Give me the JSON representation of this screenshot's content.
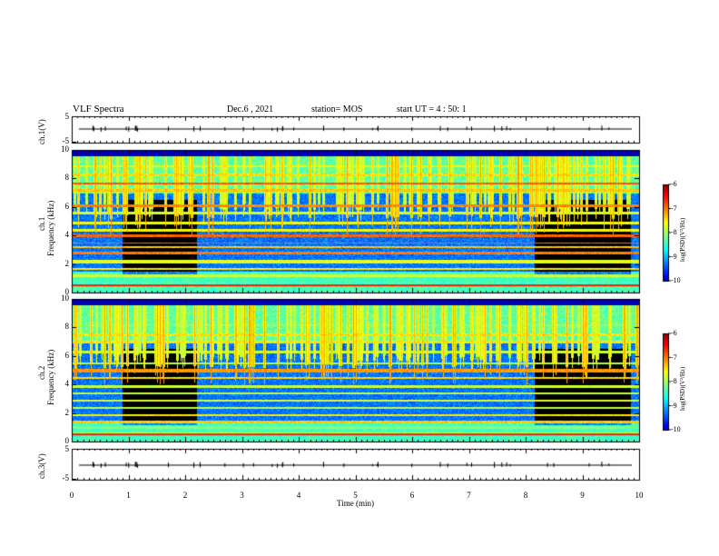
{
  "header": {
    "title": "VLF Spectra",
    "date": "Dec.6 , 2021",
    "station": "station= MOS",
    "start": "start UT = 4 : 50: 1"
  },
  "chart_data": [
    {
      "type": "line",
      "id": "ch1-waveform",
      "ylabel": "ch.1(V)",
      "ylim": [
        -5,
        5
      ],
      "yticks": [
        "5",
        "-5"
      ],
      "xlim": [
        0,
        10
      ],
      "values_note_none": ""
    },
    {
      "type": "heatmap",
      "id": "ch1-spectrogram",
      "ylabel_line1": "ch.1",
      "ylabel_line2": "Frequency (kHz)",
      "ylim": [
        0,
        10
      ],
      "yticks": [
        "0",
        "2",
        "4",
        "6",
        "8",
        "10"
      ],
      "xlim": [
        0,
        10
      ],
      "colorbar": {
        "label": "log(PSD)(V²/Hz)",
        "ticks": [
          "-6",
          "-7",
          "-8",
          "-9",
          "-10"
        ],
        "range": [
          -10,
          -6
        ]
      },
      "quiet_segments_min": [
        [
          0.88,
          2.2
        ],
        [
          8.15,
          9.85
        ]
      ],
      "lines_khz": [
        0.5,
        1.2,
        1.7,
        2.2,
        2.8,
        3.2,
        3.5,
        4.0,
        4.4,
        4.9,
        5.6,
        6.1,
        7.2,
        7.7,
        8.3,
        8.9
      ]
    },
    {
      "type": "heatmap",
      "id": "ch2-spectrogram",
      "ylabel_line1": "ch.2",
      "ylabel_line2": "Frequency (kHz)",
      "ylim": [
        0,
        10
      ],
      "yticks": [
        "0",
        "2",
        "4",
        "6",
        "8",
        "10"
      ],
      "xlim": [
        0,
        10
      ],
      "colorbar": {
        "label": "log(PSD)(V²/Hz)",
        "ticks": [
          "-6",
          "-7",
          "-8",
          "-9",
          "-10"
        ],
        "range": [
          -10,
          -6
        ]
      },
      "quiet_segments_min": [
        [
          0.88,
          2.2
        ],
        [
          8.15,
          9.85
        ]
      ],
      "lines_khz": [
        0.6,
        1.0,
        1.4,
        1.9,
        2.4,
        2.9,
        3.4,
        3.9,
        4.5,
        5.0,
        5.5,
        6.3,
        7.0,
        7.5,
        8.2
      ]
    },
    {
      "type": "line",
      "id": "ch3-waveform",
      "ylabel": "ch.3(V)",
      "ylim": [
        -5,
        5
      ],
      "yticks": [
        "5",
        "-5"
      ],
      "xlim": [
        0,
        10
      ],
      "xlabel": "Time (min)",
      "xticks": [
        "0",
        "1",
        "2",
        "3",
        "4",
        "5",
        "6",
        "7",
        "8",
        "9",
        "10"
      ]
    }
  ]
}
